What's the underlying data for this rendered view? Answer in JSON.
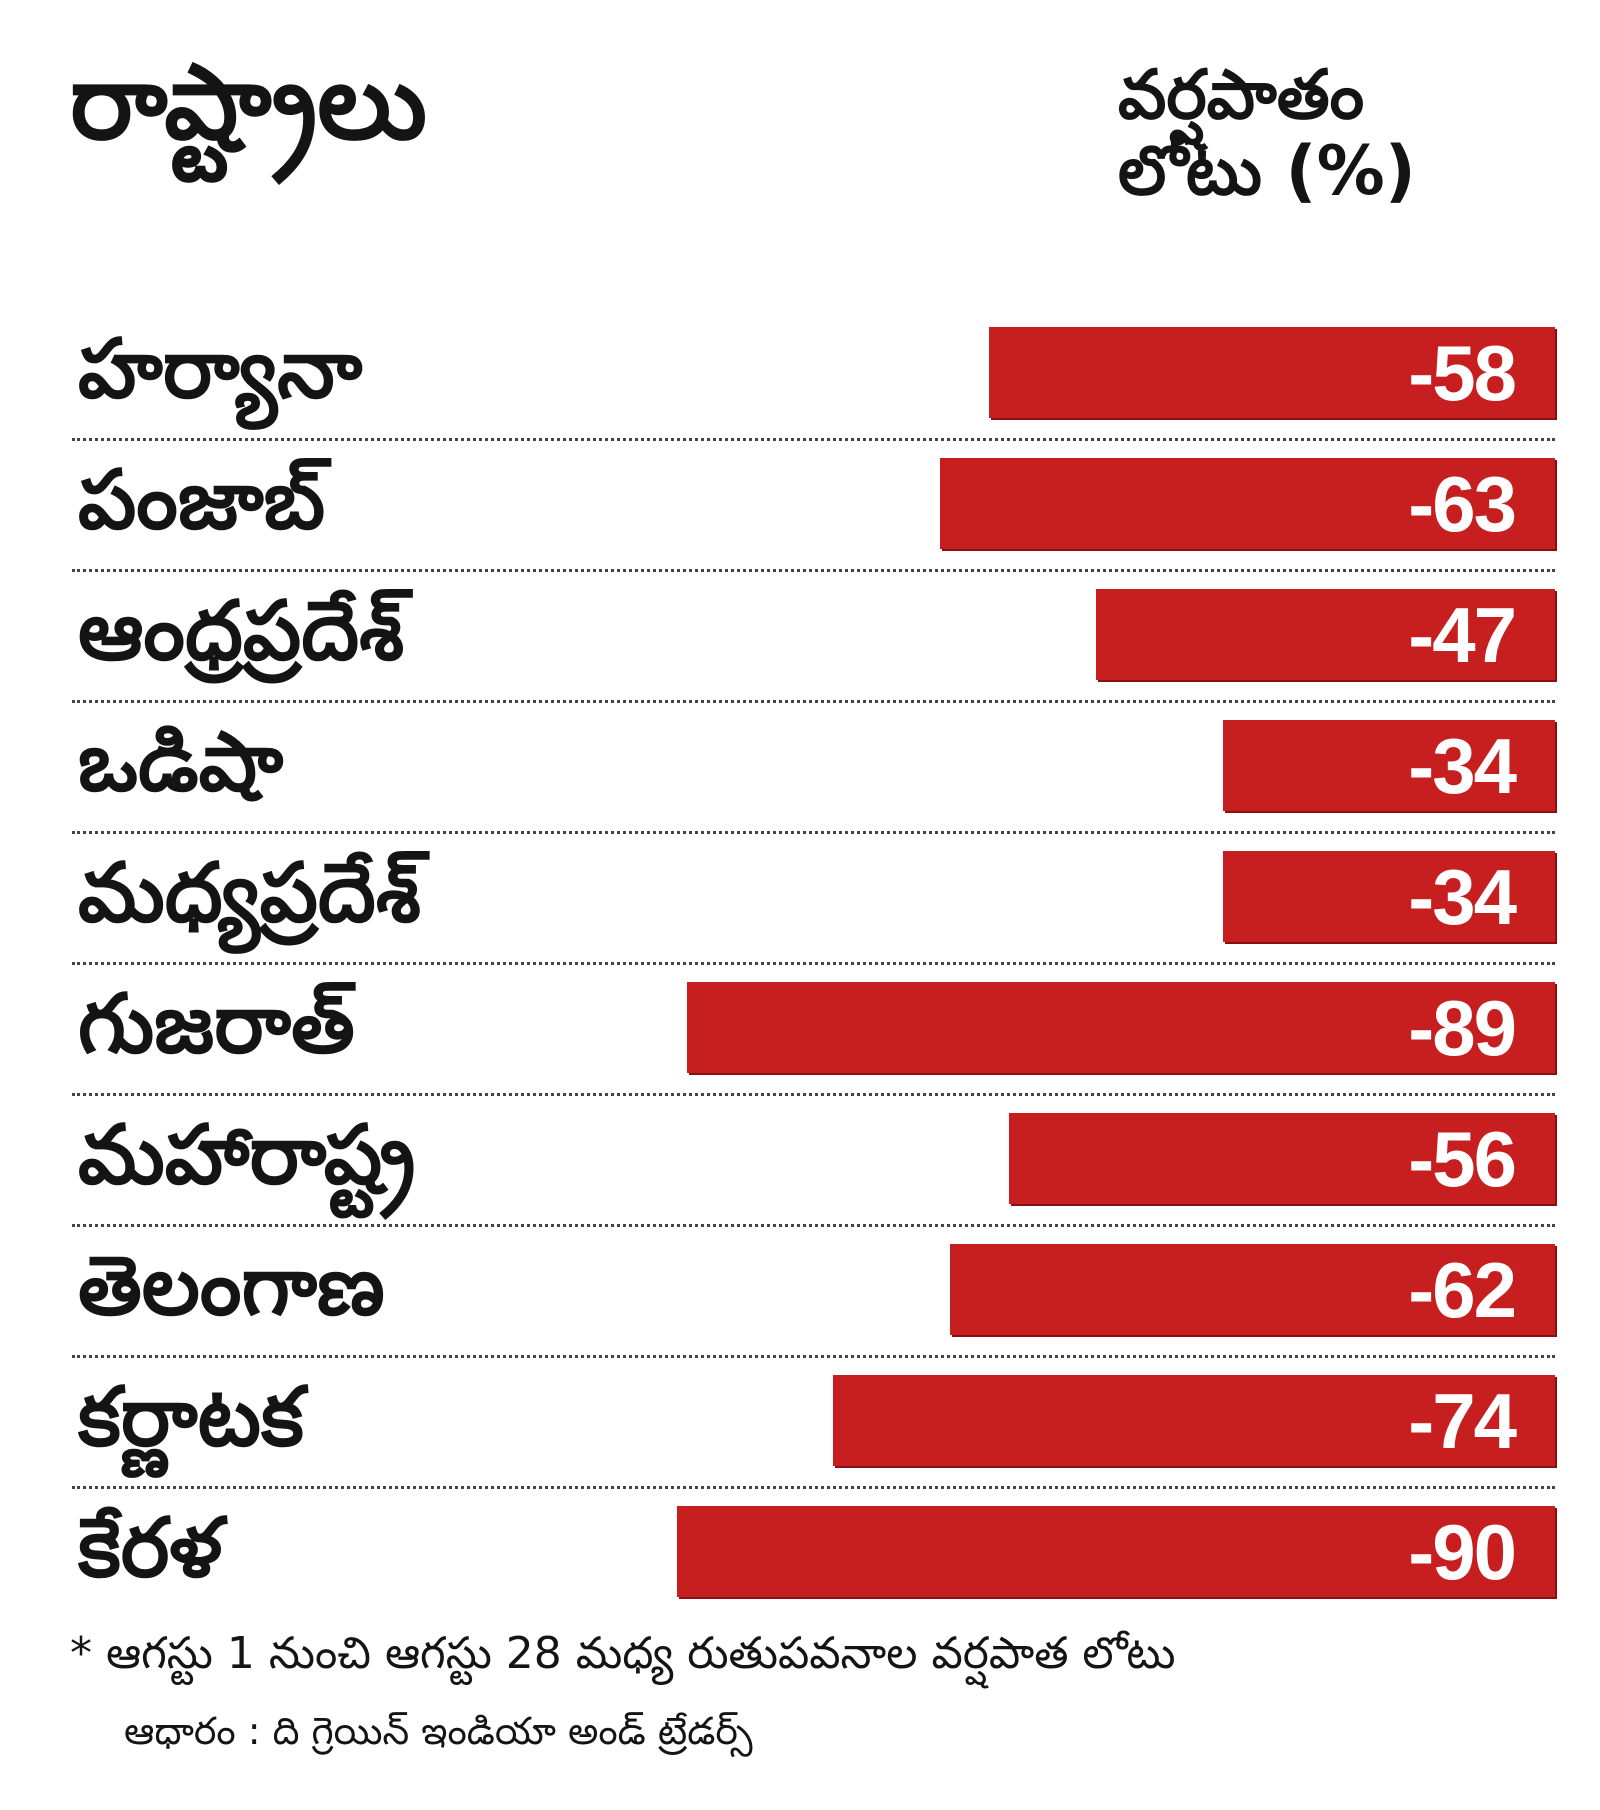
{
  "chart_data": {
    "type": "bar",
    "orientation": "horizontal",
    "title": "",
    "header_left": "రాష్ట్రాలు",
    "header_right_line1": "వర్షపాతం",
    "header_right_line2": "లోటు (%)",
    "categories": [
      "హర్యానా",
      "పంజాబ్",
      "ఆంధ్రప్రదేశ్",
      "ఒడిషా",
      "మధ్యప్రదేశ్",
      "గుజరాత్",
      "మహారాష్ట్ర",
      "తెలంగాణ",
      "కర్ణాటక",
      "కేరళ"
    ],
    "values": [
      -58,
      -63,
      -47,
      -34,
      -34,
      -89,
      -56,
      -62,
      -74,
      -90
    ],
    "value_labels": [
      "-58",
      "-63",
      "-47",
      "-34",
      "-34",
      "-89",
      "-56",
      "-62",
      "-74",
      "-90"
    ],
    "bar_color": "#c71f1f",
    "footnote": "* ఆగస్టు 1 నుంచి ఆగస్టు 28 మధ్య రుతుపవనాల వర్షపాత లోటు",
    "source": "ఆధారం : ది గ్రెయిన్ ఇండియా అండ్ ట్రేడర్స్"
  }
}
